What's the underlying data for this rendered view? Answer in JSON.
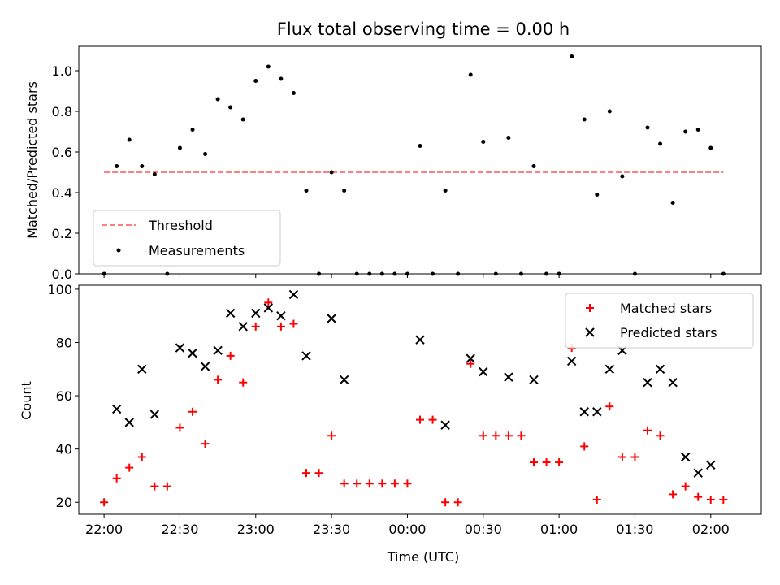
{
  "chart_data": [
    {
      "type": "scatter",
      "title": "Flux total observing time = 0.00 h",
      "xlabel": "",
      "ylabel": "Matched/Predicted stars",
      "ylim": [
        0,
        1.12
      ],
      "yticks": [
        0.0,
        0.2,
        0.4,
        0.6,
        0.8,
        1.0
      ],
      "ytick_labels": [
        "0.0",
        "0.2",
        "0.4",
        "0.6",
        "0.8",
        "1.0"
      ],
      "xlim_minutes": [
        -10,
        260
      ],
      "grid": false,
      "legend_position": "lower-left",
      "threshold": {
        "name": "Threshold",
        "value": 0.5,
        "x_start": "22:00",
        "x_end": "02:05",
        "color": "#ff7f7f"
      },
      "series": [
        {
          "name": "Measurements",
          "color": "#000000",
          "x": [
            "22:00",
            "22:05",
            "22:10",
            "22:15",
            "22:20",
            "22:25",
            "22:30",
            "22:35",
            "22:40",
            "22:45",
            "22:50",
            "22:55",
            "23:00",
            "23:05",
            "23:10",
            "23:15",
            "23:20",
            "23:25",
            "23:30",
            "23:35",
            "23:40",
            "23:45",
            "23:50",
            "23:55",
            "00:00",
            "00:05",
            "00:10",
            "00:15",
            "00:20",
            "00:25",
            "00:30",
            "00:35",
            "00:40",
            "00:45",
            "00:50",
            "00:55",
            "01:00",
            "01:05",
            "01:10",
            "01:15",
            "01:20",
            "01:25",
            "01:30",
            "01:35",
            "01:40",
            "01:45",
            "01:50",
            "01:55",
            "02:00",
            "02:05"
          ],
          "y": [
            0.0,
            0.53,
            0.66,
            0.53,
            0.49,
            0.0,
            0.62,
            0.71,
            0.59,
            0.86,
            0.82,
            0.76,
            0.95,
            1.02,
            0.96,
            0.89,
            0.41,
            0.0,
            0.5,
            0.41,
            0.0,
            0.0,
            0.0,
            0.0,
            0.0,
            0.63,
            0.0,
            0.41,
            0.0,
            0.98,
            0.65,
            0.0,
            0.67,
            0.0,
            0.53,
            0.0,
            0.0,
            1.07,
            0.76,
            0.39,
            0.8,
            0.48,
            0.0,
            0.72,
            0.64,
            0.35,
            0.7,
            0.71,
            0.62,
            0.0
          ]
        }
      ]
    },
    {
      "type": "scatter",
      "title": "",
      "xlabel": "Time (UTC)",
      "ylabel": "Count",
      "ylim": [
        15.5,
        101.5
      ],
      "yticks": [
        20,
        40,
        60,
        80,
        100
      ],
      "ytick_labels": [
        "20",
        "40",
        "60",
        "80",
        "100"
      ],
      "xticks": [
        "22:00",
        "22:30",
        "23:00",
        "23:30",
        "00:00",
        "00:30",
        "01:00",
        "01:30",
        "02:00"
      ],
      "xlim_minutes": [
        -10,
        260
      ],
      "grid": false,
      "legend_position": "top-right",
      "series": [
        {
          "name": "Matched stars",
          "marker": "plus",
          "color": "#ff0000",
          "x": [
            "22:00",
            "22:05",
            "22:10",
            "22:15",
            "22:20",
            "22:25",
            "22:30",
            "22:35",
            "22:40",
            "22:45",
            "22:50",
            "22:55",
            "23:00",
            "23:05",
            "23:10",
            "23:15",
            "23:20",
            "23:25",
            "23:30",
            "23:35",
            "23:40",
            "23:45",
            "23:50",
            "23:55",
            "00:00",
            "00:05",
            "00:10",
            "00:15",
            "00:20",
            "00:25",
            "00:30",
            "00:35",
            "00:40",
            "00:45",
            "00:50",
            "00:55",
            "01:00",
            "01:05",
            "01:10",
            "01:15",
            "01:20",
            "01:25",
            "01:30",
            "01:35",
            "01:40",
            "01:45",
            "01:50",
            "01:55",
            "02:00",
            "02:05"
          ],
          "y": [
            20,
            29,
            33,
            37,
            26,
            26,
            48,
            54,
            42,
            66,
            75,
            65,
            86,
            95,
            86,
            87,
            31,
            31,
            45,
            27,
            27,
            27,
            27,
            27,
            27,
            51,
            51,
            20,
            20,
            72,
            45,
            45,
            45,
            45,
            35,
            35,
            35,
            78,
            41,
            21,
            56,
            37,
            37,
            47,
            45,
            23,
            26,
            22,
            21,
            21
          ]
        },
        {
          "name": "Predicted stars",
          "marker": "x",
          "color": "#000000",
          "x": [
            "22:05",
            "22:10",
            "22:15",
            "22:20",
            "22:30",
            "22:35",
            "22:40",
            "22:45",
            "22:50",
            "22:55",
            "23:00",
            "23:05",
            "23:10",
            "23:15",
            "23:20",
            "23:30",
            "23:35",
            "00:05",
            "00:15",
            "00:25",
            "00:30",
            "00:40",
            "00:50",
            "01:05",
            "01:10",
            "01:15",
            "01:20",
            "01:25",
            "01:35",
            "01:40",
            "01:45",
            "01:50",
            "01:55",
            "02:00"
          ],
          "y": [
            55,
            50,
            70,
            53,
            78,
            76,
            71,
            77,
            91,
            86,
            91,
            93,
            90,
            98,
            75,
            89,
            66,
            81,
            49,
            74,
            69,
            67,
            66,
            73,
            54,
            54,
            70,
            77,
            65,
            70,
            65,
            37,
            31,
            34
          ]
        }
      ]
    }
  ]
}
